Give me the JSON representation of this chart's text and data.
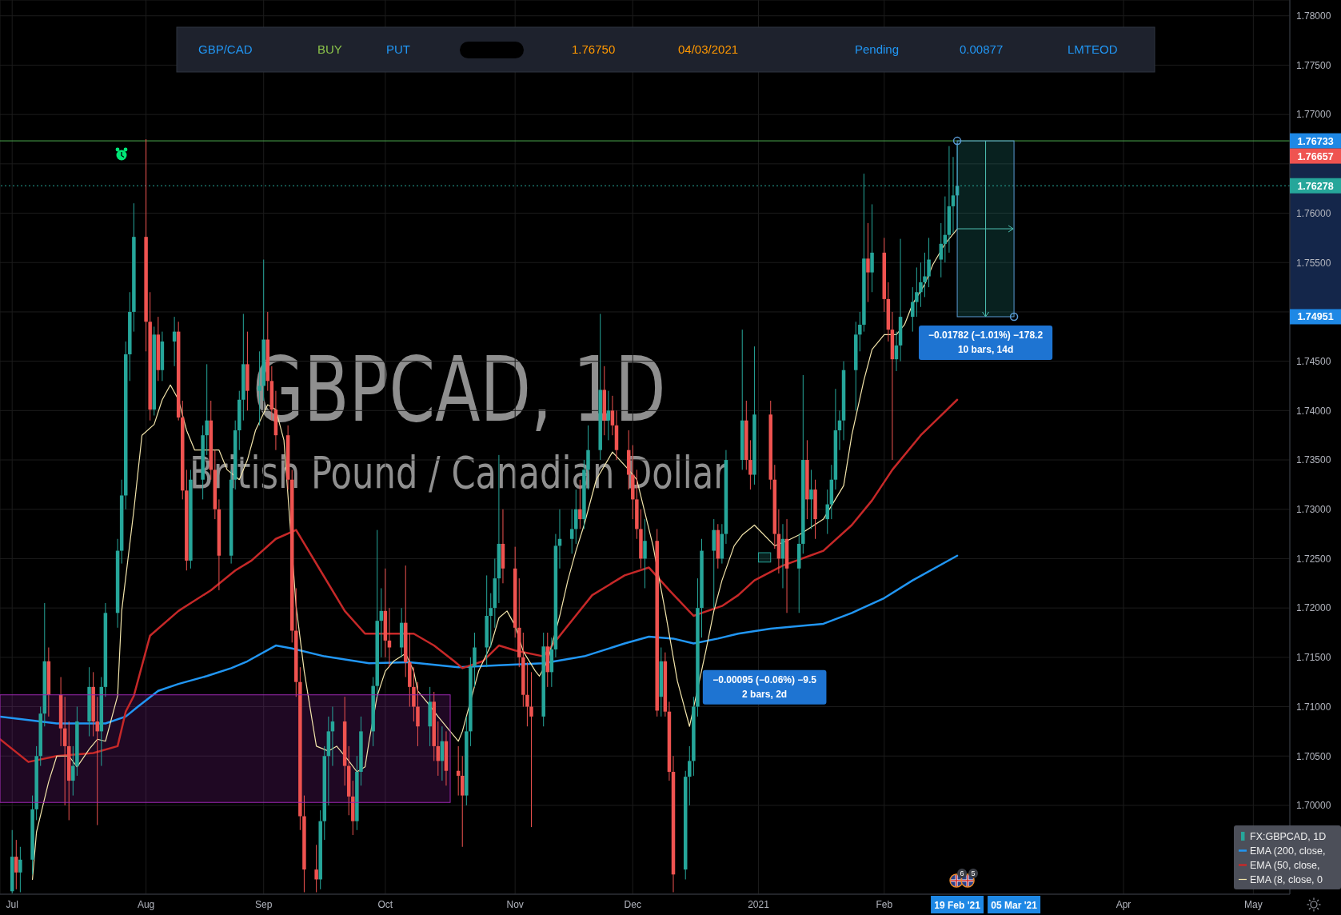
{
  "chart_data": {
    "type": "candlestick",
    "title": "GBPCAD, 1D",
    "subtitle": "British Pound / Canadian Dollar",
    "xlim": [
      "2020-06-28",
      "2021-05-12"
    ],
    "xticks": [
      {
        "value": "2020-07-01",
        "label": "Jul"
      },
      {
        "value": "2020-08-03",
        "label": "Aug"
      },
      {
        "value": "2020-09-01",
        "label": "Sep"
      },
      {
        "value": "2020-10-01",
        "label": "Oct"
      },
      {
        "value": "2020-11-02",
        "label": "Nov"
      },
      {
        "value": "2020-12-01",
        "label": "Dec"
      },
      {
        "value": "2021-01-01",
        "label": "2021"
      },
      {
        "value": "2021-02-01",
        "label": "Feb"
      },
      {
        "value": "2021-04-01",
        "label": "Apr"
      },
      {
        "value": "2021-05-03",
        "label": "May"
      }
    ],
    "ylim": [
      1.691,
      1.7816
    ],
    "yticks": [
      {
        "value": 1.7,
        "label": "1.70000"
      },
      {
        "value": 1.705,
        "label": "1.70500"
      },
      {
        "value": 1.71,
        "label": "1.71000"
      },
      {
        "value": 1.715,
        "label": "1.71500"
      },
      {
        "value": 1.72,
        "label": "1.72000"
      },
      {
        "value": 1.725,
        "label": "1.72500"
      },
      {
        "value": 1.73,
        "label": "1.73000"
      },
      {
        "value": 1.735,
        "label": "1.73500"
      },
      {
        "value": 1.74,
        "label": "1.74000"
      },
      {
        "value": 1.745,
        "label": "1.74500"
      },
      {
        "value": 1.75,
        "label": null
      },
      {
        "value": 1.755,
        "label": "1.75500"
      },
      {
        "value": 1.76,
        "label": "1.76000"
      },
      {
        "value": 1.765,
        "label": null
      },
      {
        "value": 1.77,
        "label": "1.77000"
      },
      {
        "value": 1.775,
        "label": "1.77500"
      },
      {
        "value": 1.78,
        "label": "1.78000"
      }
    ],
    "grid": true,
    "legend": "bottom right",
    "series": [
      {
        "name": "FX:GBPCAD, 1D",
        "x": [
          "2020-07-01",
          "2020-07-02",
          "2020-07-03",
          "2020-07-06",
          "2020-07-07",
          "2020-07-08",
          "2020-07-09",
          "2020-07-10",
          "2020-07-13",
          "2020-07-14",
          "2020-07-15",
          "2020-07-16",
          "2020-07-17",
          "2020-07-20",
          "2020-07-21",
          "2020-07-22",
          "2020-07-23",
          "2020-07-24",
          "2020-07-27",
          "2020-07-28",
          "2020-07-29",
          "2020-07-30",
          "2020-07-31",
          "2020-08-03",
          "2020-08-04",
          "2020-08-05",
          "2020-08-06",
          "2020-08-07",
          "2020-08-10",
          "2020-08-11",
          "2020-08-12",
          "2020-08-13",
          "2020-08-14",
          "2020-08-17",
          "2020-08-18",
          "2020-08-19",
          "2020-08-20",
          "2020-08-21",
          "2020-08-24",
          "2020-08-25",
          "2020-08-26",
          "2020-08-27",
          "2020-08-28",
          "2020-08-31",
          "2020-09-01",
          "2020-09-02",
          "2020-09-03",
          "2020-09-04",
          "2020-09-07",
          "2020-09-08",
          "2020-09-09",
          "2020-09-10",
          "2020-09-11",
          "2020-09-14",
          "2020-09-15",
          "2020-09-16",
          "2020-09-17",
          "2020-09-18",
          "2020-09-21",
          "2020-09-22",
          "2020-09-23",
          "2020-09-24",
          "2020-09-25",
          "2020-09-28",
          "2020-09-29",
          "2020-09-30",
          "2020-10-01",
          "2020-10-02",
          "2020-10-05",
          "2020-10-06",
          "2020-10-07",
          "2020-10-08",
          "2020-10-09",
          "2020-10-12",
          "2020-10-13",
          "2020-10-14",
          "2020-10-15",
          "2020-10-16",
          "2020-10-19",
          "2020-10-20",
          "2020-10-21",
          "2020-10-22",
          "2020-10-23",
          "2020-10-26",
          "2020-10-27",
          "2020-10-28",
          "2020-10-29",
          "2020-10-30",
          "2020-11-02",
          "2020-11-03",
          "2020-11-04",
          "2020-11-05",
          "2020-11-06",
          "2020-11-09",
          "2020-11-10",
          "2020-11-11",
          "2020-11-12",
          "2020-11-13",
          "2020-11-16",
          "2020-11-17",
          "2020-11-18",
          "2020-11-19",
          "2020-11-20",
          "2020-11-23",
          "2020-11-24",
          "2020-11-25",
          "2020-11-26",
          "2020-11-27",
          "2020-11-30",
          "2020-12-01",
          "2020-12-02",
          "2020-12-03",
          "2020-12-04",
          "2020-12-07",
          "2020-12-08",
          "2020-12-09",
          "2020-12-10",
          "2020-12-11",
          "2020-12-14",
          "2020-12-15",
          "2020-12-16",
          "2020-12-17",
          "2020-12-18",
          "2020-12-21",
          "2020-12-22",
          "2020-12-23",
          "2020-12-24",
          "2020-12-28",
          "2020-12-29",
          "2020-12-30",
          "2020-12-31",
          "2021-01-04",
          "2021-01-05",
          "2021-01-06",
          "2021-01-07",
          "2021-01-08",
          "2021-01-11",
          "2021-01-12",
          "2021-01-13",
          "2021-01-14",
          "2021-01-15",
          "2021-01-18",
          "2021-01-19",
          "2021-01-20",
          "2021-01-21",
          "2021-01-22",
          "2021-01-25",
          "2021-01-26",
          "2021-01-27",
          "2021-01-28",
          "2021-01-29",
          "2021-02-01",
          "2021-02-02",
          "2021-02-03",
          "2021-02-04",
          "2021-02-05",
          "2021-02-08",
          "2021-02-09",
          "2021-02-10",
          "2021-02-11",
          "2021-02-12",
          "2021-02-15",
          "2021-02-16",
          "2021-02-17",
          "2021-02-18",
          "2021-02-19"
        ],
        "ohlc": [
          [
            1.6913,
            1.6975,
            1.6911,
            1.6948
          ],
          [
            1.6948,
            1.6965,
            1.6915,
            1.6932
          ],
          [
            1.6932,
            1.6958,
            1.6912,
            1.6945
          ],
          [
            1.6945,
            1.701,
            1.693,
            1.6996
          ],
          [
            1.6996,
            1.706,
            1.6985,
            1.705
          ],
          [
            1.705,
            1.71,
            1.704,
            1.7093
          ],
          [
            1.7093,
            1.7205,
            1.708,
            1.7146
          ],
          [
            1.7146,
            1.716,
            1.709,
            1.7112
          ],
          [
            1.7112,
            1.713,
            1.706,
            1.7078
          ],
          [
            1.7078,
            1.711,
            1.7,
            1.706
          ],
          [
            1.706,
            1.7085,
            1.6985,
            1.7025
          ],
          [
            1.7025,
            1.706,
            1.701,
            1.704
          ],
          [
            1.704,
            1.71,
            1.703,
            1.7085
          ],
          [
            1.7085,
            1.714,
            1.707,
            1.712
          ],
          [
            1.712,
            1.7135,
            1.707,
            1.7085
          ],
          [
            1.7085,
            1.711,
            1.698,
            1.7075
          ],
          [
            1.7075,
            1.713,
            1.704,
            1.712
          ],
          [
            1.712,
            1.7205,
            1.711,
            1.7195
          ],
          [
            1.7195,
            1.727,
            1.718,
            1.7258
          ],
          [
            1.7258,
            1.733,
            1.7245,
            1.7314
          ],
          [
            1.7314,
            1.747,
            1.73,
            1.7457
          ],
          [
            1.7457,
            1.752,
            1.743,
            1.75
          ],
          [
            1.75,
            1.761,
            1.748,
            1.7576
          ],
          [
            1.7576,
            1.7675,
            1.746,
            1.749
          ],
          [
            1.749,
            1.752,
            1.739,
            1.7401
          ],
          [
            1.7401,
            1.7485,
            1.7395,
            1.7477
          ],
          [
            1.7477,
            1.7495,
            1.743,
            1.7441
          ],
          [
            1.7441,
            1.748,
            1.743,
            1.747
          ],
          [
            1.747,
            1.7495,
            1.7445,
            1.748
          ],
          [
            1.748,
            1.749,
            1.739,
            1.7393
          ],
          [
            1.7393,
            1.741,
            1.731,
            1.7319
          ],
          [
            1.7319,
            1.734,
            1.7238,
            1.7248
          ],
          [
            1.7248,
            1.734,
            1.724,
            1.733
          ],
          [
            1.733,
            1.7385,
            1.731,
            1.7375
          ],
          [
            1.7375,
            1.7447,
            1.7355,
            1.739
          ],
          [
            1.739,
            1.741,
            1.733,
            1.734
          ],
          [
            1.734,
            1.736,
            1.729,
            1.73
          ],
          [
            1.73,
            1.731,
            1.7218,
            1.7253
          ],
          [
            1.7253,
            1.734,
            1.7245,
            1.733
          ],
          [
            1.733,
            1.739,
            1.732,
            1.738
          ],
          [
            1.738,
            1.742,
            1.736,
            1.7411
          ],
          [
            1.7411,
            1.7498,
            1.739,
            1.7447
          ],
          [
            1.7447,
            1.748,
            1.74,
            1.742
          ],
          [
            1.742,
            1.746,
            1.7385,
            1.7425
          ],
          [
            1.7425,
            1.7553,
            1.741,
            1.7472
          ],
          [
            1.7472,
            1.75,
            1.742,
            1.743
          ],
          [
            1.743,
            1.7445,
            1.739,
            1.7401
          ],
          [
            1.7401,
            1.742,
            1.736,
            1.7375
          ],
          [
            1.7375,
            1.7385,
            1.732,
            1.733
          ],
          [
            1.733,
            1.734,
            1.7165,
            1.7177
          ],
          [
            1.7177,
            1.722,
            1.711,
            1.7125
          ],
          [
            1.7125,
            1.714,
            1.6975,
            1.6989
          ],
          [
            1.6989,
            1.701,
            1.6912,
            1.6935
          ],
          [
            1.6935,
            1.696,
            1.6912,
            1.6925
          ],
          [
            1.6925,
            1.6995,
            1.6915,
            1.6984
          ],
          [
            1.6984,
            1.706,
            1.6965,
            1.705
          ],
          [
            1.705,
            1.709,
            1.7,
            1.7075
          ],
          [
            1.7075,
            1.71,
            1.704,
            1.7085
          ],
          [
            1.7085,
            1.711,
            1.702,
            1.704
          ],
          [
            1.704,
            1.706,
            1.699,
            1.7009
          ],
          [
            1.7009,
            1.7025,
            1.697,
            1.6984
          ],
          [
            1.6984,
            1.705,
            1.6975,
            1.7034
          ],
          [
            1.7034,
            1.709,
            1.702,
            1.7075
          ],
          [
            1.7075,
            1.713,
            1.706,
            1.7121
          ],
          [
            1.7121,
            1.7279,
            1.711,
            1.7187
          ],
          [
            1.7187,
            1.722,
            1.715,
            1.7197
          ],
          [
            1.7197,
            1.724,
            1.715,
            1.7167
          ],
          [
            1.7167,
            1.72,
            1.714,
            1.716
          ],
          [
            1.716,
            1.72,
            1.715,
            1.7185
          ],
          [
            1.7185,
            1.7243,
            1.713,
            1.7145
          ],
          [
            1.7145,
            1.7175,
            1.71,
            1.712
          ],
          [
            1.712,
            1.714,
            1.7085,
            1.71
          ],
          [
            1.71,
            1.7125,
            1.706,
            1.708
          ],
          [
            1.708,
            1.712,
            1.706,
            1.7105
          ],
          [
            1.7105,
            1.7115,
            1.7045,
            1.706
          ],
          [
            1.706,
            1.7085,
            1.703,
            1.7045
          ],
          [
            1.7045,
            1.708,
            1.7025,
            1.7065
          ],
          [
            1.7065,
            1.7075,
            1.702,
            1.7035
          ],
          [
            1.7035,
            1.706,
            1.701,
            1.703
          ],
          [
            1.703,
            1.705,
            1.6958,
            1.701
          ],
          [
            1.701,
            1.709,
            1.7,
            1.7075
          ],
          [
            1.7075,
            1.715,
            1.706,
            1.7141
          ],
          [
            1.7141,
            1.7175,
            1.712,
            1.716
          ],
          [
            1.716,
            1.7233,
            1.714,
            1.7192
          ],
          [
            1.7192,
            1.7215,
            1.716,
            1.72
          ],
          [
            1.72,
            1.725,
            1.718,
            1.723
          ],
          [
            1.723,
            1.7355,
            1.7205,
            1.7265
          ],
          [
            1.7265,
            1.73,
            1.7225,
            1.724
          ],
          [
            1.724,
            1.7262,
            1.717,
            1.718
          ],
          [
            1.718,
            1.723,
            1.714,
            1.715
          ],
          [
            1.715,
            1.7175,
            1.71,
            1.7112
          ],
          [
            1.7112,
            1.7145,
            1.708,
            1.71
          ],
          [
            1.71,
            1.7135,
            1.6978,
            1.709
          ],
          [
            1.709,
            1.7175,
            1.708,
            1.7161
          ],
          [
            1.7161,
            1.7175,
            1.712,
            1.7135
          ],
          [
            1.7135,
            1.717,
            1.712,
            1.7158
          ],
          [
            1.7158,
            1.7275,
            1.715,
            1.7263
          ],
          [
            1.7263,
            1.73,
            1.724,
            1.727
          ],
          [
            1.727,
            1.73,
            1.7255,
            1.728
          ],
          [
            1.728,
            1.732,
            1.7265,
            1.73
          ],
          [
            1.73,
            1.733,
            1.728,
            1.729
          ],
          [
            1.729,
            1.735,
            1.728,
            1.734
          ],
          [
            1.734,
            1.7385,
            1.732,
            1.736
          ],
          [
            1.736,
            1.7498,
            1.735,
            1.7421
          ],
          [
            1.7421,
            1.7445,
            1.7375,
            1.739
          ],
          [
            1.739,
            1.742,
            1.737,
            1.74
          ],
          [
            1.74,
            1.7415,
            1.7375,
            1.7385
          ],
          [
            1.7385,
            1.74,
            1.735,
            1.736
          ],
          [
            1.736,
            1.738,
            1.732,
            1.7335
          ],
          [
            1.7335,
            1.7365,
            1.729,
            1.731
          ],
          [
            1.731,
            1.734,
            1.727,
            1.728
          ],
          [
            1.728,
            1.73,
            1.724,
            1.725
          ],
          [
            1.725,
            1.729,
            1.722,
            1.7268
          ],
          [
            1.7268,
            1.728,
            1.709,
            1.7096
          ],
          [
            1.711,
            1.716,
            1.709,
            1.7146
          ],
          [
            1.7146,
            1.7155,
            1.709,
            1.7095
          ],
          [
            1.7095,
            1.7105,
            1.7025,
            1.7034
          ],
          [
            1.7034,
            1.705,
            1.6912,
            1.693
          ],
          [
            1.6935,
            1.7035,
            1.6925,
            1.7029
          ],
          [
            1.7029,
            1.706,
            1.7,
            1.7045
          ],
          [
            1.7045,
            1.711,
            1.703,
            1.71
          ],
          [
            1.71,
            1.723,
            1.709,
            1.72
          ],
          [
            1.72,
            1.727,
            1.717,
            1.7258
          ],
          [
            1.7258,
            1.729,
            1.72,
            1.7279
          ],
          [
            1.7279,
            1.7285,
            1.724,
            1.725
          ],
          [
            1.725,
            1.7285,
            1.7245,
            1.7275
          ],
          [
            1.7275,
            1.736,
            1.7265,
            1.735
          ],
          [
            1.735,
            1.7482,
            1.734,
            1.739
          ],
          [
            1.739,
            1.741,
            1.734,
            1.735
          ],
          [
            1.735,
            1.737,
            1.732,
            1.7335
          ],
          [
            1.7335,
            1.7465,
            1.7325,
            1.7396
          ],
          [
            1.7396,
            1.741,
            1.732,
            1.733
          ],
          [
            1.733,
            1.7345,
            1.726,
            1.7275
          ],
          [
            1.7275,
            1.73,
            1.7235,
            1.725
          ],
          [
            1.725,
            1.7285,
            1.722,
            1.727
          ],
          [
            1.727,
            1.729,
            1.7195,
            1.724
          ],
          [
            1.724,
            1.7275,
            1.7195,
            1.7265
          ],
          [
            1.7265,
            1.7436,
            1.7255,
            1.735
          ],
          [
            1.735,
            1.737,
            1.729,
            1.731
          ],
          [
            1.731,
            1.734,
            1.728,
            1.732
          ],
          [
            1.732,
            1.733,
            1.727,
            1.729
          ],
          [
            1.729,
            1.732,
            1.7275,
            1.7305
          ],
          [
            1.7305,
            1.7345,
            1.729,
            1.733
          ],
          [
            1.733,
            1.7422,
            1.732,
            1.738
          ],
          [
            1.738,
            1.74,
            1.736,
            1.739
          ],
          [
            1.739,
            1.745,
            1.737,
            1.7441
          ],
          [
            1.7441,
            1.749,
            1.74,
            1.7477
          ],
          [
            1.7477,
            1.75,
            1.746,
            1.7487
          ],
          [
            1.7487,
            1.764,
            1.748,
            1.7554
          ],
          [
            1.7554,
            1.759,
            1.751,
            1.754
          ],
          [
            1.754,
            1.7609,
            1.752,
            1.756
          ],
          [
            1.756,
            1.7575,
            1.75,
            1.7513
          ],
          [
            1.7513,
            1.753,
            1.747,
            1.7482
          ],
          [
            1.7482,
            1.75,
            1.735,
            1.7452
          ],
          [
            1.7452,
            1.748,
            1.744,
            1.7466
          ],
          [
            1.7466,
            1.7574,
            1.745,
            1.7495
          ],
          [
            1.7495,
            1.7525,
            1.748,
            1.751
          ],
          [
            1.751,
            1.7545,
            1.7495,
            1.752
          ],
          [
            1.752,
            1.755,
            1.7505,
            1.753
          ],
          [
            1.753,
            1.756,
            1.7515,
            1.7536
          ],
          [
            1.7536,
            1.7575,
            1.7525,
            1.7553
          ],
          [
            1.7553,
            1.759,
            1.7535,
            1.7569
          ],
          [
            1.7569,
            1.7617,
            1.755,
            1.7578
          ],
          [
            1.7578,
            1.7668,
            1.756,
            1.7607
          ],
          [
            1.7607,
            1.7657,
            1.758,
            1.7618
          ],
          [
            1.7618,
            1.7671,
            1.7584,
            1.76278
          ]
        ],
        "colors": [
          "#26a69a",
          "#ef5350",
          "#26a69a",
          "#26a69a",
          "#26a69a",
          "#26a69a",
          "#26a69a",
          "#ef5350",
          "#ef5350",
          "#ef5350",
          "#ef5350",
          "#26a69a",
          "#26a69a",
          "#26a69a",
          "#ef5350",
          "#ef5350",
          "#26a69a",
          "#26a69a",
          "#26a69a",
          "#26a69a",
          "#26a69a",
          "#26a69a",
          "#26a69a",
          "#ef5350",
          "#ef5350",
          "#26a69a",
          "#ef5350",
          "#26a69a",
          "#26a69a",
          "#ef5350",
          "#ef5350",
          "#ef5350",
          "#26a69a",
          "#26a69a",
          "#26a69a",
          "#ef5350",
          "#ef5350",
          "#ef5350",
          "#26a69a",
          "#26a69a",
          "#26a69a",
          "#26a69a",
          "#ef5350",
          "#26a69a",
          "#26a69a",
          "#ef5350",
          "#ef5350",
          "#ef5350",
          "#ef5350",
          "#ef5350",
          "#ef5350",
          "#ef5350",
          "#ef5350",
          "#ef5350",
          "#26a69a",
          "#26a69a",
          "#26a69a",
          "#26a69a",
          "#ef5350",
          "#ef5350",
          "#ef5350",
          "#26a69a",
          "#26a69a",
          "#26a69a",
          "#26a69a",
          "#26a69a",
          "#ef5350",
          "#ef5350",
          "#26a69a",
          "#ef5350",
          "#ef5350",
          "#ef5350",
          "#ef5350",
          "#26a69a",
          "#ef5350",
          "#ef5350",
          "#26a69a",
          "#ef5350",
          "#ef5350",
          "#ef5350",
          "#26a69a",
          "#26a69a",
          "#26a69a",
          "#26a69a",
          "#26a69a",
          "#26a69a",
          "#26a69a",
          "#ef5350",
          "#ef5350",
          "#ef5350",
          "#ef5350",
          "#ef5350",
          "#ef5350",
          "#26a69a",
          "#ef5350",
          "#26a69a",
          "#26a69a",
          "#26a69a",
          "#26a69a",
          "#26a69a",
          "#ef5350",
          "#26a69a",
          "#26a69a",
          "#26a69a",
          "#ef5350",
          "#26a69a",
          "#ef5350",
          "#ef5350",
          "#ef5350",
          "#ef5350",
          "#ef5350",
          "#ef5350",
          "#26a69a",
          "#ef5350",
          "#26a69a",
          "#ef5350",
          "#ef5350",
          "#ef5350",
          "#26a69a",
          "#26a69a",
          "#26a69a",
          "#26a69a",
          "#26a69a",
          "#26a69a",
          "#ef5350",
          "#26a69a",
          "#26a69a",
          "#26a69a",
          "#ef5350",
          "#ef5350",
          "#26a69a",
          "#ef5350",
          "#ef5350",
          "#ef5350",
          "#26a69a",
          "#ef5350",
          "#26a69a",
          "#26a69a",
          "#ef5350",
          "#26a69a",
          "#ef5350",
          "#26a69a",
          "#26a69a",
          "#26a69a",
          "#26a69a",
          "#26a69a",
          "#26a69a",
          "#26a69a",
          "#26a69a",
          "#ef5350",
          "#26a69a",
          "#ef5350",
          "#ef5350",
          "#ef5350",
          "#26a69a",
          "#26a69a",
          "#26a69a",
          "#26a69a",
          "#26a69a",
          "#26a69a",
          "#26a69a",
          "#26a69a",
          "#26a69a",
          "#26a69a",
          "#26a69a",
          "#26a69a"
        ]
      },
      {
        "name": "EMA (200, close,",
        "type": "line",
        "color": "#2196f3",
        "x": [
          "2020-06-28",
          "2020-07-12",
          "2020-07-24",
          "2020-07-29",
          "2020-08-01",
          "2020-08-06",
          "2020-08-11",
          "2020-08-18",
          "2020-08-24",
          "2020-08-28",
          "2020-09-04",
          "2020-09-08",
          "2020-09-16",
          "2020-09-27",
          "2020-10-07",
          "2020-10-19",
          "2020-10-29",
          "2020-11-09",
          "2020-11-19",
          "2020-11-29",
          "2020-12-05",
          "2020-12-11",
          "2020-12-16",
          "2020-12-22",
          "2020-12-27",
          "2021-01-04",
          "2021-01-17",
          "2021-01-24",
          "2021-02-01",
          "2021-02-08",
          "2021-02-19"
        ],
        "values": [
          1.709,
          1.7083,
          1.7083,
          1.709,
          1.71,
          1.7116,
          1.7123,
          1.7131,
          1.7139,
          1.7146,
          1.7162,
          1.7159,
          1.7151,
          1.7144,
          1.7145,
          1.714,
          1.7142,
          1.7144,
          1.7151,
          1.7164,
          1.7171,
          1.7169,
          1.7164,
          1.7169,
          1.7174,
          1.7179,
          1.7184,
          1.7195,
          1.721,
          1.7228,
          1.7253
        ]
      },
      {
        "name": "EMA (50, close,",
        "type": "line",
        "color": "#c62828",
        "x": [
          "2020-06-28",
          "2020-07-05",
          "2020-07-12",
          "2020-07-21",
          "2020-07-27",
          "2020-07-29",
          "2020-07-31",
          "2020-08-04",
          "2020-08-11",
          "2020-08-19",
          "2020-08-25",
          "2020-08-29",
          "2020-09-04",
          "2020-09-09",
          "2020-09-15",
          "2020-09-21",
          "2020-09-26",
          "2020-10-03",
          "2020-10-08",
          "2020-10-13",
          "2020-10-18",
          "2020-10-20",
          "2020-10-25",
          "2020-10-29",
          "2020-11-02",
          "2020-11-09",
          "2020-11-14",
          "2020-11-21",
          "2020-11-29",
          "2020-12-05",
          "2020-12-10",
          "2020-12-16",
          "2020-12-18",
          "2020-12-23",
          "2020-12-27",
          "2020-12-31",
          "2021-01-07",
          "2021-01-17",
          "2021-01-24",
          "2021-01-29",
          "2021-02-03",
          "2021-02-10",
          "2021-02-19"
        ],
        "values": [
          1.7067,
          1.7044,
          1.705,
          1.7053,
          1.706,
          1.7095,
          1.7111,
          1.7172,
          1.7197,
          1.7218,
          1.7238,
          1.7248,
          1.727,
          1.7279,
          1.7238,
          1.7197,
          1.7174,
          1.7174,
          1.7174,
          1.7162,
          1.7146,
          1.7139,
          1.7146,
          1.7162,
          1.7157,
          1.7151,
          1.7177,
          1.7213,
          1.7233,
          1.7241,
          1.7218,
          1.7192,
          1.7195,
          1.7202,
          1.7213,
          1.7228,
          1.7243,
          1.7258,
          1.7284,
          1.7309,
          1.734,
          1.7375,
          1.7411
        ]
      },
      {
        "name": "EMA (8, close, 0",
        "type": "line",
        "color": "#f3e5ab",
        "x": [
          "2020-07-06",
          "2020-07-07",
          "2020-07-10",
          "2020-07-12",
          "2020-07-15",
          "2020-07-17",
          "2020-07-20",
          "2020-07-22",
          "2020-07-24",
          "2020-07-27",
          "2020-07-28",
          "2020-07-31",
          "2020-08-02",
          "2020-08-05",
          "2020-08-07",
          "2020-08-09",
          "2020-08-11",
          "2020-08-13",
          "2020-08-15",
          "2020-08-18",
          "2020-08-21",
          "2020-08-23",
          "2020-08-26",
          "2020-08-28",
          "2020-08-30",
          "2020-09-02",
          "2020-09-04",
          "2020-09-06",
          "2020-09-09",
          "2020-09-11",
          "2020-09-13",
          "2020-09-14",
          "2020-09-17",
          "2020-09-19",
          "2020-09-22",
          "2020-09-24",
          "2020-09-26",
          "2020-09-27",
          "2020-09-29",
          "2020-10-01",
          "2020-10-03",
          "2020-10-06",
          "2020-10-08",
          "2020-10-09",
          "2020-10-12",
          "2020-10-14",
          "2020-10-17",
          "2020-10-19",
          "2020-10-20",
          "2020-10-24",
          "2020-10-27",
          "2020-10-29",
          "2020-10-31",
          "2020-11-02",
          "2020-11-04",
          "2020-11-07",
          "2020-11-08",
          "2020-11-10",
          "2020-11-13",
          "2020-11-15",
          "2020-11-17",
          "2020-11-19",
          "2020-11-22",
          "2020-11-26",
          "2020-11-30",
          "2020-12-02",
          "2020-12-06",
          "2020-12-09",
          "2020-12-12",
          "2020-12-15",
          "2020-12-19",
          "2020-12-21",
          "2020-12-23",
          "2020-12-26",
          "2020-12-28",
          "2020-12-31",
          "2021-01-05",
          "2021-01-08",
          "2021-01-11",
          "2021-01-17",
          "2021-01-22",
          "2021-01-24",
          "2021-01-27",
          "2021-01-29",
          "2021-02-01",
          "2021-02-04",
          "2021-02-06",
          "2021-02-08",
          "2021-02-11",
          "2021-02-13",
          "2021-02-16",
          "2021-02-19"
        ],
        "values": [
          1.6925,
          1.6973,
          1.7024,
          1.705,
          1.705,
          1.7039,
          1.7057,
          1.7067,
          1.7065,
          1.7111,
          1.7197,
          1.7299,
          1.7375,
          1.7386,
          1.7411,
          1.7426,
          1.7411,
          1.738,
          1.736,
          1.736,
          1.736,
          1.734,
          1.733,
          1.735,
          1.738,
          1.7406,
          1.7401,
          1.737,
          1.7202,
          1.7136,
          1.7085,
          1.706,
          1.7055,
          1.706,
          1.7045,
          1.7034,
          1.7039,
          1.7065,
          1.7111,
          1.7136,
          1.7146,
          1.7154,
          1.7136,
          1.7116,
          1.7101,
          1.709,
          1.7075,
          1.7065,
          1.7075,
          1.7136,
          1.7162,
          1.719,
          1.7197,
          1.7182,
          1.7156,
          1.7136,
          1.7131,
          1.7146,
          1.7192,
          1.7228,
          1.7258,
          1.7284,
          1.733,
          1.7358,
          1.734,
          1.733,
          1.7263,
          1.7197,
          1.7126,
          1.708,
          1.7156,
          1.7197,
          1.7228,
          1.7263,
          1.7274,
          1.7284,
          1.7263,
          1.7268,
          1.7274,
          1.729,
          1.7324,
          1.7375,
          1.7431,
          1.7462,
          1.7477,
          1.7477,
          1.7487,
          1.7508,
          1.7528,
          1.7548,
          1.7569,
          1.7584
        ]
      },
      {
        "type": "area",
        "color": "#9c27b0",
        "x": [
          "2020-06-28",
          "2020-10-17"
        ],
        "values": [
          null,
          null
        ],
        "lower": [
          1.7003,
          1.7003
        ],
        "upper": [
          1.7112,
          1.7112
        ]
      },
      {
        "type": "area",
        "color": "#26a69a",
        "x": [
          "2021-02-19",
          "2021-03-05"
        ],
        "values": [
          null,
          null
        ],
        "lower": [
          1.74951,
          1.74951
        ],
        "upper": [
          1.76733,
          1.76733
        ]
      },
      {
        "type": "area",
        "color": "#26a69a",
        "x": [
          "2021-01-01",
          "2021-01-04"
        ],
        "values": [
          null,
          null
        ],
        "lower": [
          1.72465,
          1.72465
        ],
        "upper": [
          1.7256,
          1.7256
        ]
      }
    ],
    "ref_lines": [
      {
        "axis": "y",
        "value": 1.76733,
        "color": "#4caf50"
      },
      {
        "axis": "y",
        "value": 1.76278,
        "color": "#26a69a",
        "line_style": "dotted",
        "label": "1.76278"
      }
    ],
    "annotations": [
      "GBP/CAD",
      "BUY",
      "PUT",
      "1.76750",
      "04/03/2021",
      "Pending",
      "0.00877",
      "LMTEOD",
      {
        "text": "−0.01782 (−1.01%) −178.2\n10 bars, 14d",
        "x": "2021-02-26",
        "y": 1.74951
      },
      "−0.00095 (−0.06%) −9.5\n2 bars, 2d",
      "19 Feb '21",
      "05 Mar '21",
      "1.76733",
      "1.76657",
      "1.74951",
      "6",
      "5"
    ]
  }
}
